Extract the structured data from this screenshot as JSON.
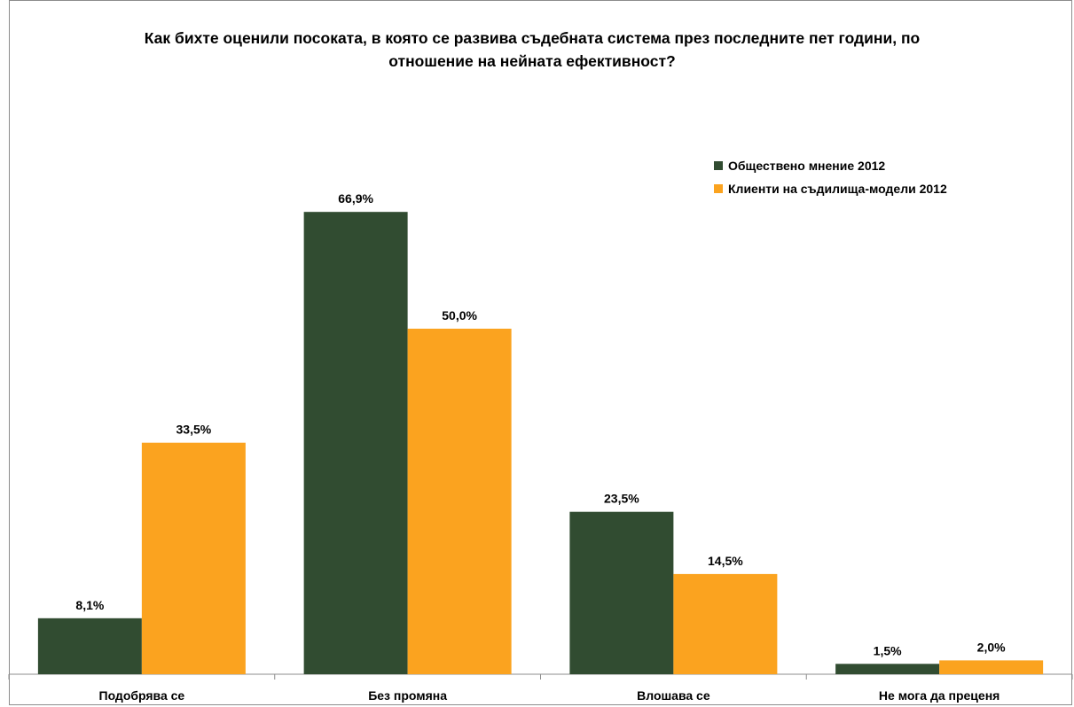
{
  "chart_data": {
    "type": "bar",
    "title_lines": [
      "Как бихте оценили посоката, в която се развива съдебната система през последните пет години, по",
      "отношение на нейната ефективност?"
    ],
    "categories": [
      "Подобрява  се",
      "Без промяна",
      "Влошава се",
      "Не мога да преценя"
    ],
    "series": [
      {
        "name": "Обществено мнение 2012",
        "color": "#314c31",
        "values": [
          8.1,
          66.9,
          23.5,
          1.5
        ],
        "labels": [
          "8,1%",
          "66,9%",
          "23,5%",
          "1,5%"
        ]
      },
      {
        "name": "Клиенти на съдилища-модели 2012",
        "color": "#fba31f",
        "values": [
          33.5,
          50.0,
          14.5,
          2.0
        ],
        "labels": [
          "33,5%",
          "50,0%",
          "14,5%",
          "2,0%"
        ]
      }
    ],
    "ylim": [
      0,
      70
    ],
    "legend_position": "top-right",
    "grid": false
  }
}
